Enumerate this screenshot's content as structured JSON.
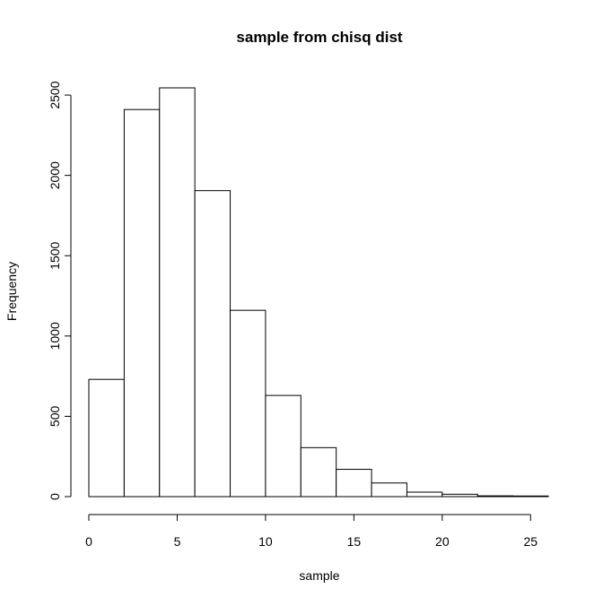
{
  "chart_data": {
    "type": "bar",
    "title": "sample from chisq dist",
    "xlabel": "sample",
    "ylabel": "Frequency",
    "bin_edges": [
      0,
      2,
      4,
      6,
      8,
      10,
      12,
      14,
      16,
      18,
      20,
      22,
      24,
      26
    ],
    "values": [
      730,
      2410,
      2545,
      1905,
      1160,
      630,
      305,
      170,
      85,
      28,
      15,
      5,
      4
    ],
    "x_ticks": [
      0,
      5,
      10,
      15,
      20,
      25
    ],
    "y_ticks": [
      0,
      500,
      1000,
      1500,
      2000,
      2500
    ],
    "x_tick_labels": [
      "0",
      "5",
      "10",
      "15",
      "20",
      "25"
    ],
    "y_tick_labels": [
      "0",
      "500",
      "1000",
      "1500",
      "2000",
      "2500"
    ],
    "xlim": [
      0,
      26
    ],
    "ylim": [
      0,
      2545
    ],
    "grid": false,
    "bar_fill": "#ffffff",
    "bar_stroke": "#000000"
  }
}
